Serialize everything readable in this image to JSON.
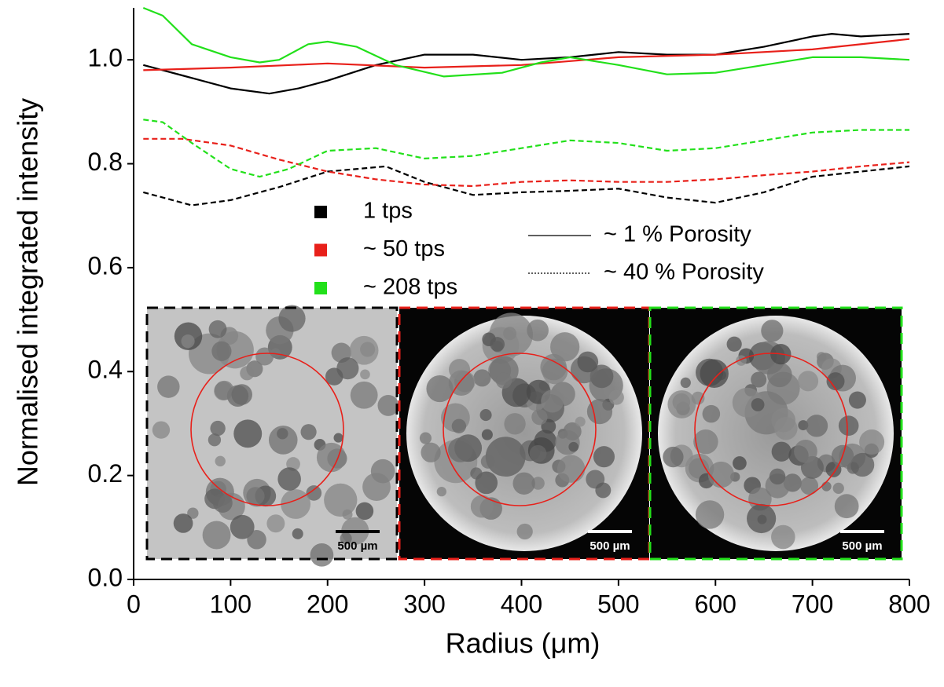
{
  "chart_data": {
    "type": "line",
    "x_label": "Radius (μm)",
    "y_label": "Normalised integrated intensity",
    "xlim": [
      0,
      800
    ],
    "ylim": [
      0,
      1.1
    ],
    "xticks": [
      0,
      100,
      200,
      300,
      400,
      500,
      600,
      700,
      800
    ],
    "yticks": [
      {
        "value": 0,
        "label": "0.0"
      },
      0.2,
      0.4,
      0.6,
      0.8,
      {
        "value": 1,
        "label": "1.0"
      }
    ],
    "line_styles": [
      {
        "name": "~ 1 % Porosity",
        "dash": "solid"
      },
      {
        "name": "~ 40 % Porosity",
        "dash": "dashed"
      }
    ],
    "groups": [
      {
        "name": "1 tps",
        "color": "#000000",
        "lines": [
          {
            "x": [
              10,
              50,
              100,
              140,
              170,
              200,
              250,
              300,
              350,
              400,
              450,
              500,
              550,
              600,
              650,
              700,
              720,
              750,
              800
            ],
            "values": [
              0.99,
              0.97,
              0.945,
              0.935,
              0.945,
              0.96,
              0.99,
              1.01,
              1.01,
              1.0,
              1.005,
              1.015,
              1.01,
              1.01,
              1.025,
              1.045,
              1.05,
              1.045,
              1.05
            ]
          },
          {
            "x": [
              10,
              60,
              100,
              150,
              200,
              260,
              300,
              350,
              400,
              450,
              500,
              550,
              600,
              650,
              700,
              750,
              800
            ],
            "values": [
              0.745,
              0.72,
              0.73,
              0.755,
              0.785,
              0.795,
              0.765,
              0.74,
              0.745,
              0.748,
              0.752,
              0.735,
              0.725,
              0.745,
              0.775,
              0.785,
              0.795
            ]
          }
        ]
      },
      {
        "name": "~ 50 tps",
        "color": "#e8201a",
        "lines": [
          {
            "x": [
              10,
              100,
              200,
              300,
              400,
              500,
              600,
              700,
              800
            ],
            "values": [
              0.98,
              0.985,
              0.993,
              0.985,
              0.99,
              1.005,
              1.01,
              1.02,
              1.04
            ]
          },
          {
            "x": [
              10,
              50,
              100,
              150,
              200,
              250,
              300,
              350,
              400,
              450,
              500,
              550,
              600,
              650,
              700,
              750,
              800
            ],
            "values": [
              0.848,
              0.848,
              0.835,
              0.808,
              0.785,
              0.77,
              0.76,
              0.757,
              0.765,
              0.768,
              0.765,
              0.765,
              0.77,
              0.778,
              0.785,
              0.795,
              0.803
            ]
          }
        ]
      },
      {
        "name": "~ 208 tps",
        "color": "#22e01a",
        "lines": [
          {
            "x": [
              10,
              30,
              60,
              100,
              130,
              150,
              180,
              200,
              230,
              270,
              320,
              380,
              420,
              450,
              500,
              550,
              600,
              650,
              700,
              750,
              800
            ],
            "values": [
              1.1,
              1.085,
              1.03,
              1.005,
              0.995,
              1.0,
              1.03,
              1.035,
              1.025,
              0.99,
              0.968,
              0.975,
              0.995,
              1.005,
              0.99,
              0.972,
              0.975,
              0.99,
              1.005,
              1.005,
              1.0
            ]
          },
          {
            "x": [
              10,
              30,
              60,
              100,
              130,
              160,
              200,
              250,
              300,
              350,
              400,
              450,
              500,
              550,
              600,
              650,
              700,
              750,
              800
            ],
            "values": [
              0.885,
              0.88,
              0.84,
              0.79,
              0.775,
              0.79,
              0.825,
              0.83,
              0.81,
              0.815,
              0.83,
              0.845,
              0.84,
              0.825,
              0.83,
              0.845,
              0.86,
              0.865,
              0.865
            ]
          }
        ]
      }
    ],
    "insets": [
      {
        "border": "#000000",
        "scale_bar": "500 µm"
      },
      {
        "border": "#e8201a",
        "scale_bar": "500 µm"
      },
      {
        "border": "#22e01a",
        "scale_bar": "500 µm"
      }
    ]
  }
}
